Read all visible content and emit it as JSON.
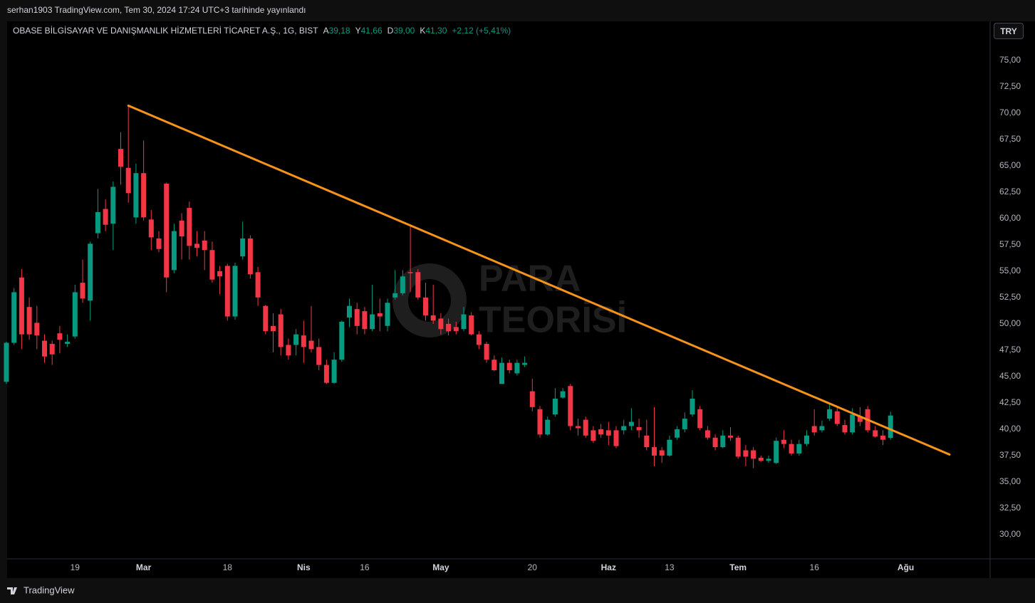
{
  "chart_data": {
    "type": "candlestick",
    "publish_note": "serhan1903 TradingView.com, Tem 30, 2024 17:24 UTC+3 tarihinde yayınlandı",
    "title": "OBASE BİLGİSAYAR VE DANIŞMANLIK HİZMETLERİ TİCARET A.Ş., 1G, BIST",
    "ohlc_legend": {
      "open_label": "A",
      "open": "39,18",
      "high_label": "Y",
      "high": "41,66",
      "low_label": "D",
      "low": "39,00",
      "close_label": "K",
      "close": "41,30",
      "change": "+2,12 (+5,41%)"
    },
    "currency": "TRY",
    "watermark": [
      "PARA",
      "TEORİSİ"
    ],
    "brand": "TradingView",
    "categories": [
      null,
      null,
      null,
      null,
      null,
      null,
      null,
      null,
      null,
      "19",
      null,
      null,
      null,
      null,
      null,
      null,
      null,
      null,
      "Mar",
      null,
      null,
      null,
      null,
      null,
      null,
      null,
      null,
      null,
      null,
      "18",
      null,
      null,
      null,
      null,
      null,
      null,
      null,
      null,
      null,
      "Nis",
      null,
      null,
      null,
      null,
      null,
      null,
      null,
      "16",
      null,
      null,
      null,
      null,
      null,
      null,
      null,
      null,
      null,
      "May",
      null,
      null,
      null,
      null,
      null,
      null,
      null,
      null,
      null,
      null,
      null,
      "20",
      null,
      null,
      null,
      null,
      null,
      null,
      null,
      null,
      null,
      "Haz",
      null,
      null,
      null,
      null,
      null,
      null,
      null,
      "13",
      null,
      null,
      null,
      null,
      null,
      null,
      null,
      null,
      "Tem",
      null,
      null,
      null,
      null,
      null,
      null,
      null,
      null,
      null,
      "16",
      null,
      null,
      null,
      null,
      null,
      null,
      null,
      null,
      null,
      null,
      null,
      "Ağu"
    ],
    "open": [
      44.5,
      48.2,
      54.4,
      51.6,
      50.1,
      48.4,
      48.1,
      49.1,
      48.1,
      48.8,
      53.9,
      52.2,
      58.6,
      60.9,
      59.5,
      66.6,
      64.8,
      60.1,
      64.3,
      59.9,
      58.1,
      63.3,
      55.1,
      59.8,
      61.0,
      57.6,
      57.9,
      57.0,
      55.0,
      55.5,
      50.7,
      56.4,
      58.1,
      54.9,
      51.7,
      49.8,
      50.9,
      48.0,
      48.0,
      48.9,
      48.4,
      47.8,
      46.1,
      44.4,
      46.6,
      50.6,
      51.4,
      51.2,
      49.5,
      51.0,
      49.8,
      52.5,
      52.9,
      54.9,
      54.9,
      52.5,
      50.8,
      50.5,
      50.0,
      49.7,
      49.5,
      50.8,
      49.0,
      48.1,
      46.6,
      44.3,
      46.3,
      45.3,
      46.1,
      43.6,
      41.9,
      39.5,
      41.4,
      43.0,
      44.1,
      40.3,
      40.9,
      39.9,
      40.0,
      39.9,
      39.9,
      39.9,
      40.3,
      40.2,
      39.4,
      38.3,
      38.0,
      37.5,
      39.2,
      40.0,
      41.4,
      41.9,
      39.9,
      39.2,
      38.3,
      39.4,
      39.2,
      38.0,
      38.0,
      37.3,
      37.0,
      36.8,
      39.0,
      38.6,
      37.7,
      38.6,
      40.3,
      39.9,
      41.0,
      41.7,
      40.4,
      39.7,
      41.2,
      41.9,
      39.9,
      39.4,
      39.18,
      null,
      null
    ],
    "high": [
      48.3,
      53.4,
      55.2,
      52.5,
      51.7,
      49.0,
      48.4,
      49.8,
      49.0,
      53.7,
      56.1,
      57.8,
      62.8,
      61.8,
      63.5,
      68.2,
      70.7,
      65.2,
      67.4,
      60.8,
      58.8,
      63.4,
      59.5,
      60.5,
      61.6,
      58.8,
      58.8,
      57.8,
      55.5,
      55.7,
      55.8,
      59.7,
      58.4,
      55.4,
      51.8,
      51.0,
      51.4,
      48.6,
      49.5,
      50.3,
      51.7,
      48.6,
      46.6,
      47.3,
      50.3,
      52.4,
      52.0,
      51.6,
      53.7,
      52.4,
      52.4,
      55.1,
      55.1,
      59.3,
      55.2,
      53.9,
      53.7,
      51.0,
      50.5,
      50.2,
      51.6,
      51.1,
      49.3,
      48.3,
      47.0,
      46.8,
      46.6,
      46.6,
      46.9,
      44.8,
      42.2,
      41.2,
      43.9,
      43.9,
      44.3,
      41.0,
      41.2,
      40.3,
      40.5,
      40.7,
      40.3,
      40.9,
      42.0,
      41.0,
      40.9,
      42.1,
      38.3,
      39.4,
      40.3,
      41.6,
      43.7,
      42.2,
      40.3,
      39.5,
      39.9,
      40.2,
      39.4,
      38.5,
      38.3,
      37.5,
      37.5,
      39.2,
      39.9,
      39.0,
      39.0,
      39.9,
      41.9,
      40.8,
      42.4,
      42.2,
      40.9,
      42.0,
      42.1,
      42.2,
      40.3,
      39.9,
      41.66,
      null,
      null
    ],
    "low": [
      44.3,
      48.0,
      47.6,
      48.5,
      47.6,
      46.3,
      46.1,
      47.2,
      47.8,
      48.6,
      52.0,
      50.3,
      58.1,
      58.8,
      57.0,
      63.2,
      61.5,
      59.5,
      59.8,
      57.0,
      56.8,
      53.0,
      54.8,
      56.1,
      56.1,
      56.4,
      55.1,
      53.9,
      52.8,
      50.3,
      50.4,
      56.1,
      54.3,
      51.7,
      49.0,
      47.3,
      47.0,
      46.6,
      47.0,
      46.3,
      47.3,
      45.6,
      44.3,
      44.3,
      46.4,
      49.7,
      49.0,
      49.0,
      49.3,
      49.3,
      49.3,
      52.3,
      52.7,
      53.0,
      52.3,
      50.3,
      50.0,
      49.0,
      48.9,
      49.0,
      49.3,
      48.9,
      47.6,
      46.3,
      45.5,
      44.3,
      45.3,
      45.1,
      45.9,
      41.7,
      39.2,
      39.4,
      41.2,
      42.9,
      39.9,
      39.4,
      39.2,
      38.7,
      39.2,
      38.5,
      38.2,
      39.5,
      39.9,
      39.2,
      38.0,
      36.5,
      36.8,
      37.4,
      39.0,
      39.7,
      41.2,
      39.9,
      39.0,
      38.0,
      38.2,
      38.9,
      37.2,
      36.5,
      36.3,
      36.9,
      36.8,
      36.7,
      38.2,
      37.5,
      37.5,
      38.4,
      39.4,
      39.7,
      40.8,
      40.3,
      39.5,
      39.5,
      40.3,
      39.7,
      39.2,
      38.5,
      39.0,
      null,
      null
    ],
    "close": [
      48.2,
      53.0,
      49.0,
      49.0,
      48.9,
      46.9,
      47.1,
      48.5,
      48.3,
      53.0,
      52.4,
      57.6,
      60.6,
      59.4,
      63.0,
      64.9,
      62.4,
      64.3,
      60.1,
      58.2,
      57.1,
      54.4,
      58.8,
      58.3,
      57.4,
      57.2,
      57.0,
      54.2,
      54.5,
      50.7,
      55.5,
      58.1,
      54.7,
      52.5,
      49.3,
      49.3,
      47.8,
      47.0,
      49.0,
      47.8,
      47.6,
      46.1,
      44.4,
      46.6,
      50.2,
      51.7,
      49.8,
      49.5,
      50.9,
      50.7,
      52.0,
      52.9,
      54.5,
      54.8,
      52.5,
      50.8,
      50.3,
      49.5,
      49.3,
      49.3,
      50.9,
      49.0,
      48.0,
      46.6,
      45.6,
      46.3,
      45.6,
      46.3,
      46.3,
      42.1,
      39.5,
      40.9,
      42.9,
      43.6,
      40.3,
      40.1,
      39.4,
      38.9,
      39.5,
      39.4,
      38.4,
      40.3,
      40.7,
      39.9,
      38.3,
      37.5,
      37.5,
      39.0,
      40.0,
      41.0,
      42.9,
      40.1,
      39.2,
      38.3,
      39.4,
      39.2,
      37.4,
      37.4,
      37.2,
      37.0,
      37.2,
      38.9,
      38.6,
      37.7,
      38.6,
      39.4,
      39.7,
      40.3,
      41.9,
      40.5,
      39.7,
      41.4,
      40.7,
      39.9,
      39.3,
      39.0,
      41.3,
      null,
      null
    ],
    "up_color": "#089981",
    "down_color": "#f23645",
    "ylim": [
      27.7,
      78.7
    ],
    "yticks": [
      {
        "value": 30,
        "label": "30,00"
      },
      {
        "value": 32.5,
        "label": "32,50"
      },
      {
        "value": 35,
        "label": "35,00"
      },
      {
        "value": 37.5,
        "label": "37,50"
      },
      {
        "value": 40,
        "label": "40,00"
      },
      {
        "value": 42.5,
        "label": "42,50"
      },
      {
        "value": 45,
        "label": "45,00"
      },
      {
        "value": 47.5,
        "label": "47,50"
      },
      {
        "value": 50,
        "label": "50,00"
      },
      {
        "value": 52.5,
        "label": "52,50"
      },
      {
        "value": 55,
        "label": "55,00"
      },
      {
        "value": 57.5,
        "label": "57,50"
      },
      {
        "value": 60,
        "label": "60,00"
      },
      {
        "value": 62.5,
        "label": "62,50"
      },
      {
        "value": 65,
        "label": "65,00"
      },
      {
        "value": 67.5,
        "label": "67,50"
      },
      {
        "value": 70,
        "label": "70,00"
      },
      {
        "value": 72.5,
        "label": "72,50"
      },
      {
        "value": 75,
        "label": "75,00"
      }
    ],
    "grid": false,
    "trendline": {
      "color": "#f7931a",
      "start": 70.7,
      "end": 37.6
    }
  }
}
